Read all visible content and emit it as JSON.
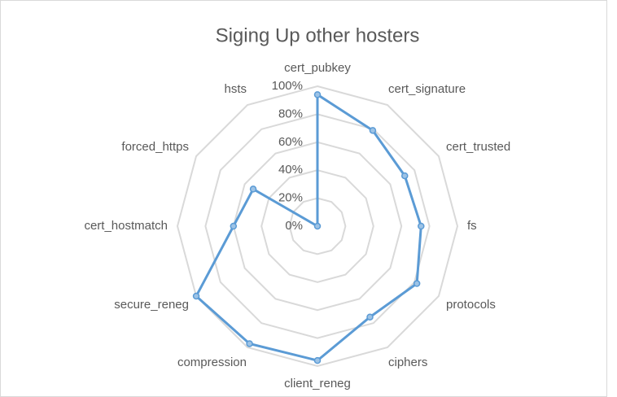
{
  "chart_data": {
    "type": "radar",
    "title": "Siging Up other hosters",
    "categories": [
      "cert_pubkey",
      "cert_signature",
      "cert_trusted",
      "fs",
      "protocols",
      "ciphers",
      "client_reneg",
      "compression",
      "secure_reneg",
      "cert_hostmatch",
      "forced_https",
      "hsts"
    ],
    "values": [
      94,
      79,
      72,
      74,
      82,
      75,
      96,
      97,
      100,
      60,
      53,
      0
    ],
    "color": "#5b9bd5",
    "ylim": [
      0,
      100
    ],
    "yticks": [
      {
        "value": 0,
        "label": "0%"
      },
      {
        "value": 20,
        "label": "20%"
      },
      {
        "value": 40,
        "label": "40%"
      },
      {
        "value": 60,
        "label": "60%"
      },
      {
        "value": 80,
        "label": "80%"
      },
      {
        "value": 100,
        "label": "100%"
      }
    ],
    "grid": true
  }
}
